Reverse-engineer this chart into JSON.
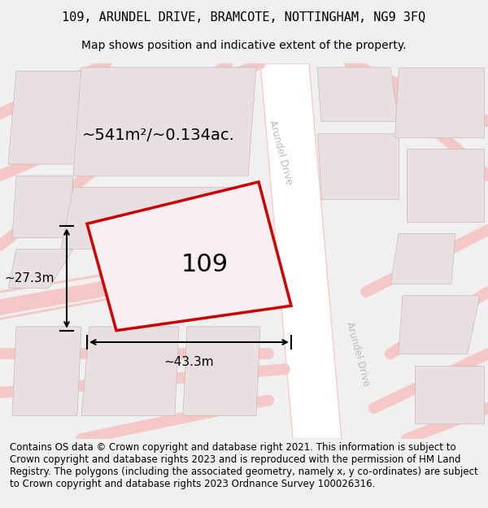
{
  "title_line1": "109, ARUNDEL DRIVE, BRAMCOTE, NOTTINGHAM, NG9 3FQ",
  "title_line2": "Map shows position and indicative extent of the property.",
  "footer_text": "Contains OS data © Crown copyright and database right 2021. This information is subject to Crown copyright and database rights 2023 and is reproduced with the permission of HM Land Registry. The polygons (including the associated geometry, namely x, y co-ordinates) are subject to Crown copyright and database rights 2023 Ordnance Survey 100026316.",
  "property_label": "109",
  "area_label": "~541m²/~0.134ac.",
  "width_label": "~43.3m",
  "height_label": "~27.3m",
  "road_label_top": "Arundel Drive",
  "road_label_bottom": "Arundel Drive",
  "bg_color": "#f5f0f0",
  "map_bg": "#ffffff",
  "road_color": "#f5c8c8",
  "building_fill": "#e8e0e0",
  "road_outline": "#e8b8b8",
  "property_outline": "#cc0000",
  "property_fill": "#f0e8e8",
  "dim_line_color": "#000000",
  "text_color": "#000000",
  "road_text_color": "#bbbbbb",
  "title_fontsize": 11,
  "subtitle_fontsize": 10,
  "label_fontsize": 14,
  "property_fontsize": 22,
  "footer_fontsize": 8.5
}
